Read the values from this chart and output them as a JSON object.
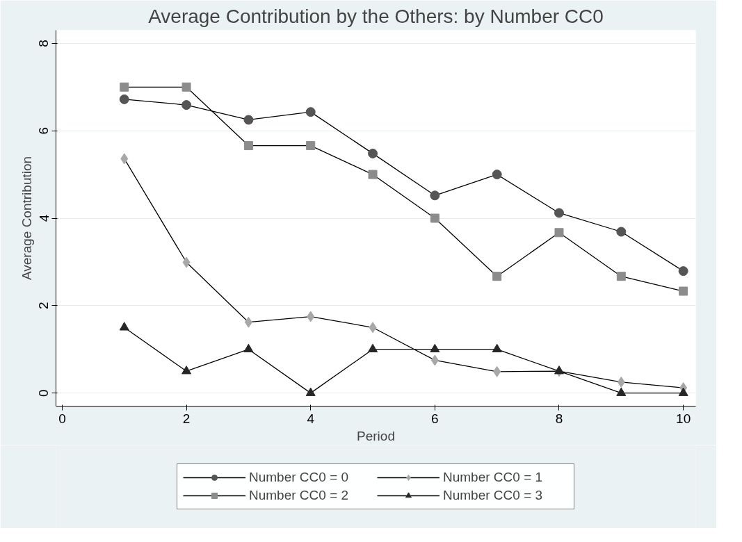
{
  "chart_data": {
    "type": "line",
    "title": "Average Contribution by the Others: by Number CC0",
    "xlabel": "Period",
    "ylabel": "Average Contribution",
    "x": [
      1,
      2,
      3,
      4,
      5,
      6,
      7,
      8,
      9,
      10
    ],
    "xlim": [
      -0.1,
      10.2
    ],
    "ylim": [
      -0.3,
      8.3
    ],
    "xticks": [
      0,
      2,
      4,
      6,
      8,
      10
    ],
    "yticks": [
      0,
      2,
      4,
      6,
      8
    ],
    "grid": "y",
    "legend": "bottom",
    "series": [
      {
        "name": "Number CC0 = 0",
        "color": "#555555",
        "marker": "circle",
        "values": [
          6.72,
          6.59,
          6.25,
          6.43,
          5.48,
          4.52,
          5.0,
          4.12,
          3.69,
          2.79
        ]
      },
      {
        "name": "Number CC0 = 1",
        "color": "#a8a8a8",
        "marker": "diamond",
        "values": [
          5.36,
          2.99,
          1.62,
          1.75,
          1.5,
          0.75,
          0.49,
          0.5,
          0.25,
          0.12
        ]
      },
      {
        "name": "Number CC0 = 2",
        "color": "#8c8c8c",
        "marker": "square",
        "values": [
          7.0,
          7.0,
          5.66,
          5.66,
          5.0,
          4.0,
          2.67,
          3.67,
          2.67,
          2.33
        ]
      },
      {
        "name": "Number CC0 = 3",
        "color": "#262626",
        "marker": "triangle",
        "values": [
          1.5,
          0.5,
          1.0,
          0.0,
          1.0,
          1.0,
          1.0,
          0.5,
          0.0,
          0.0
        ]
      }
    ]
  }
}
